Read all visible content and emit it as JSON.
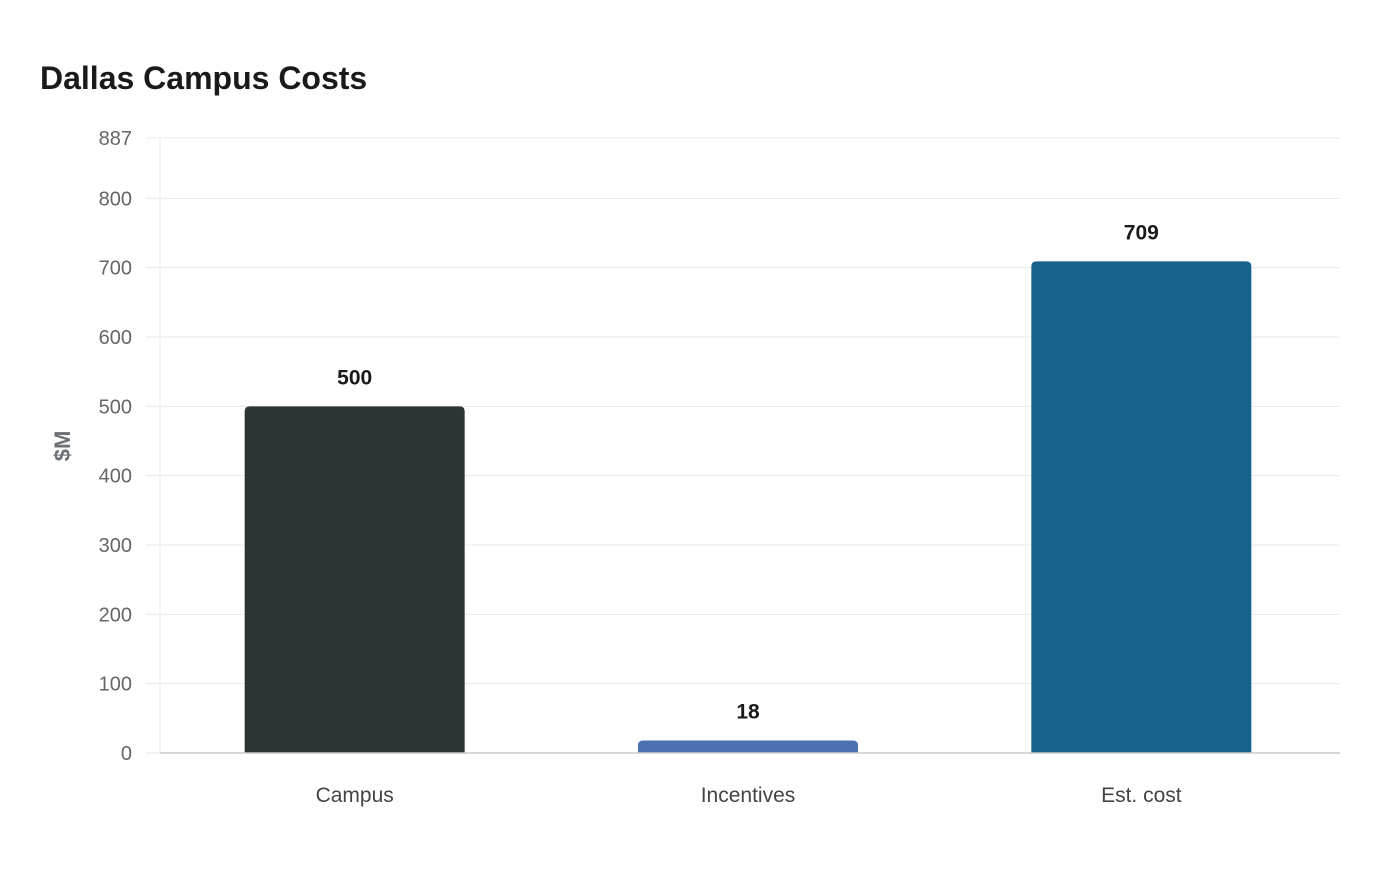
{
  "chart_data": {
    "type": "bar",
    "title": "Dallas Campus Costs",
    "xlabel": "",
    "ylabel": "$M",
    "categories": [
      "Campus",
      "Incentives",
      "Est. cost"
    ],
    "values": [
      500,
      18,
      709
    ],
    "colors": [
      "#2d3436",
      "#4a72b0",
      "#17628a"
    ],
    "ylim": [
      0,
      887
    ],
    "yticks": [
      0,
      100,
      200,
      300,
      400,
      500,
      600,
      700,
      800,
      887
    ],
    "grid": true,
    "legend": "none"
  }
}
